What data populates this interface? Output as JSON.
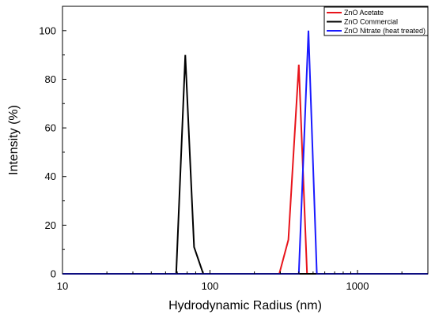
{
  "chart_data": {
    "type": "line",
    "title": "",
    "xlabel": "Hydrodynamic Radius (nm)",
    "ylabel": "Intensity (%)",
    "x_scale": "log",
    "xlim": [
      10,
      3000
    ],
    "ylim": [
      0,
      110
    ],
    "x_ticks": [
      10,
      100,
      1000
    ],
    "x_tick_labels": [
      "10",
      "100",
      "1000"
    ],
    "y_ticks": [
      0,
      20,
      40,
      60,
      80,
      100
    ],
    "y_tick_labels": [
      "0",
      "20",
      "40",
      "60",
      "80",
      "100"
    ],
    "grid": false,
    "legend_position": "top-right",
    "series": [
      {
        "name": "ZnO Acetate",
        "color": "#e8141b",
        "x": [
          10,
          295,
          340,
          400,
          455,
          3000
        ],
        "y": [
          0,
          0,
          14,
          86,
          0,
          0
        ]
      },
      {
        "name": "ZnO Commercial",
        "color": "#000000",
        "x": [
          10,
          59,
          68,
          78,
          90,
          3000
        ],
        "y": [
          0,
          0,
          90,
          11,
          0,
          0
        ]
      },
      {
        "name": "ZnO Nitrate (heat treated)",
        "color": "#1a1aff",
        "x": [
          10,
          400,
          465,
          530,
          3000
        ],
        "y": [
          0,
          0,
          100,
          0,
          0
        ]
      }
    ]
  }
}
